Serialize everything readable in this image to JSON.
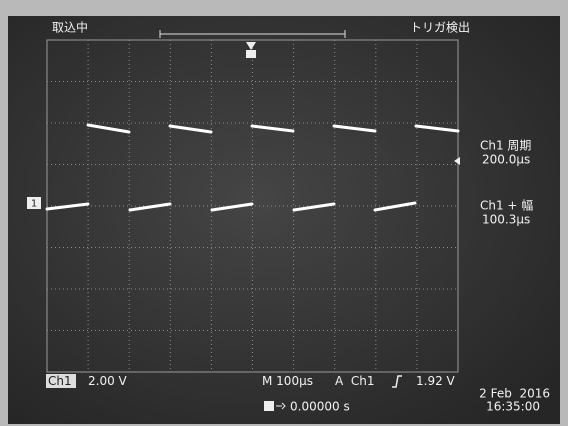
{
  "header": {
    "status": "取込中",
    "trigger_status": "トリガ検出"
  },
  "channel_marker": "1",
  "measurements": [
    {
      "label": "Ch1 周期",
      "value": "200.0µs"
    },
    {
      "label": "Ch1 + 幅",
      "value": "100.3µs"
    }
  ],
  "footer": {
    "channel": "Ch1",
    "volts_per_div": "2.00 V",
    "timebase": "M 100µs",
    "trigger_source": "A  Ch1",
    "trigger_level": "1.92 V",
    "position": "0.00000 s",
    "date": "2 Feb  2016",
    "time": "16:35:00"
  }
}
